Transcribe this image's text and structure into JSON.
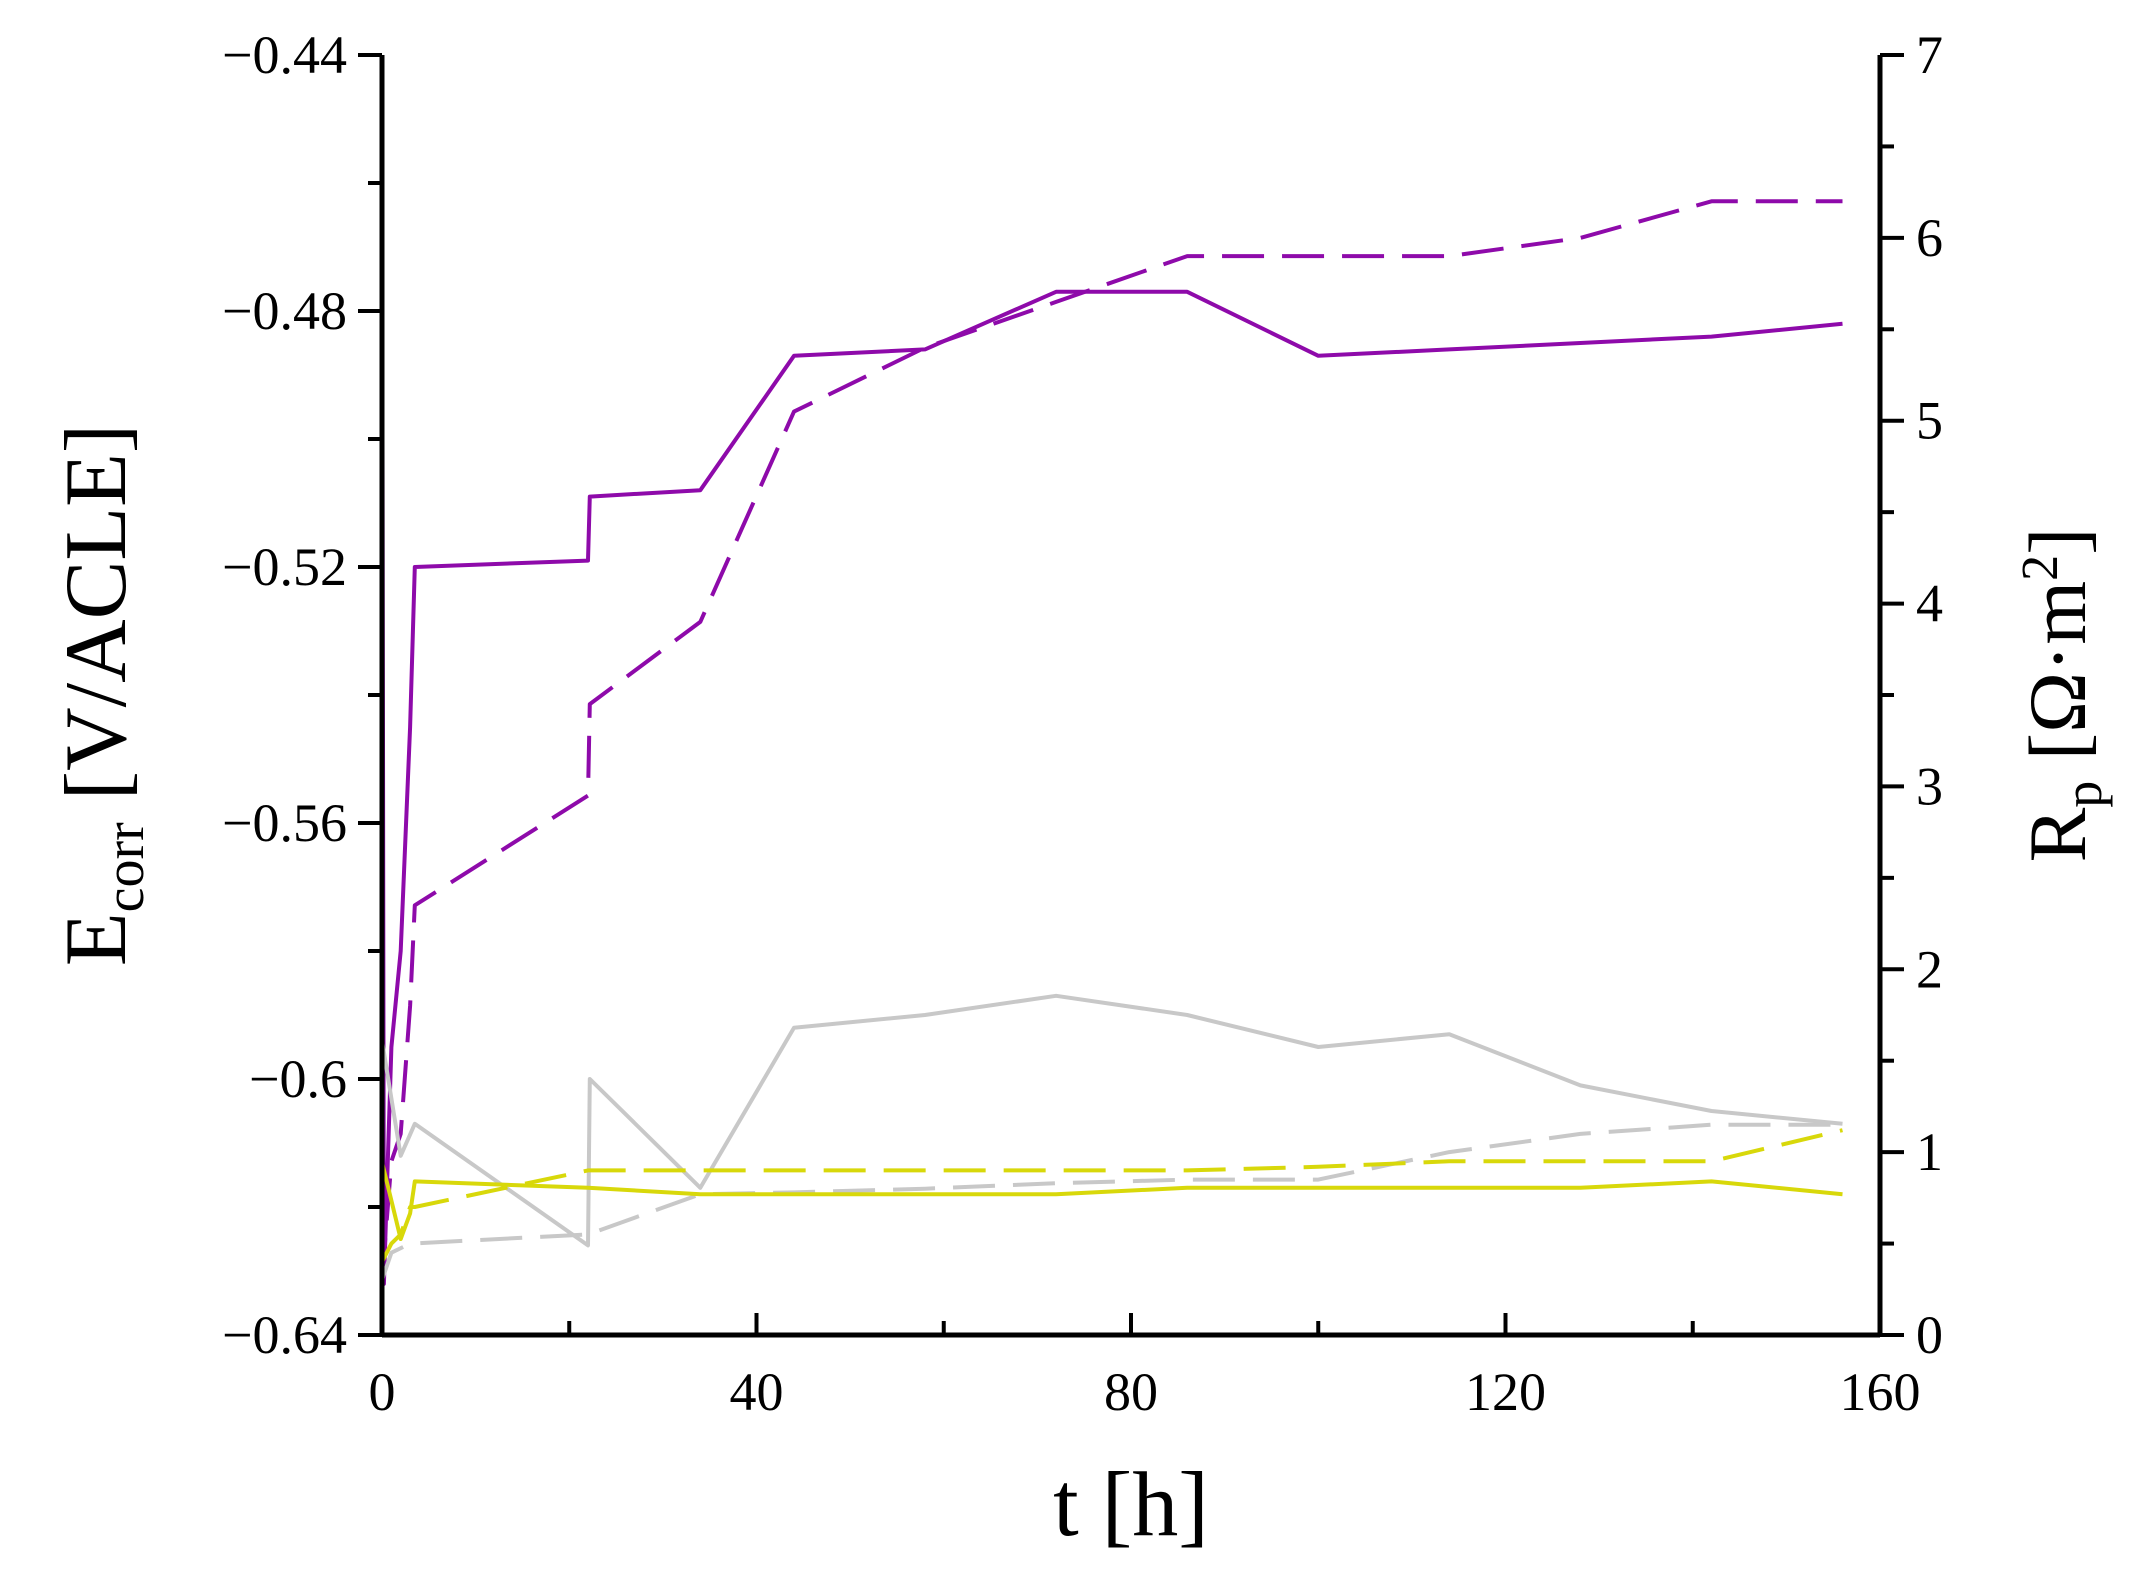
{
  "chart_data": {
    "type": "line",
    "title": "",
    "xlabel": "t [h]",
    "ylabel_left": {
      "main": "E",
      "sub": "corr",
      "rest": " [V/ACLE]"
    },
    "ylabel_right": {
      "main": "R",
      "sub": "p",
      "rest_before_sup": " [Ω·m",
      "sup": "2",
      "rest_after_sup": "]"
    },
    "x_axis": {
      "range": [
        0,
        160
      ],
      "ticks": [
        0,
        40,
        80,
        120,
        160
      ],
      "tick_labels": [
        "0",
        "40",
        "80",
        "120",
        "160"
      ]
    },
    "y_left_axis": {
      "range": [
        -0.64,
        -0.44
      ],
      "ticks": [
        -0.64,
        -0.6,
        -0.56,
        -0.52,
        -0.48,
        -0.44
      ],
      "tick_labels": [
        "−0.64",
        "−0.6",
        "−0.56",
        "−0.52",
        "−0.48",
        "−0.44"
      ]
    },
    "y_right_axis": {
      "range": [
        0,
        7
      ],
      "ticks": [
        0,
        1,
        2,
        3,
        4,
        5,
        6,
        7
      ],
      "tick_labels": [
        "0",
        "1",
        "2",
        "3",
        "4",
        "5",
        "6",
        "7"
      ]
    },
    "colors": {
      "purple": "#8e0aaa",
      "yellow": "#d8d80a",
      "gray": "#c8c8c8",
      "left_axis_label": "#4a3a10",
      "right_axis_label": "#4a3a10",
      "axis": "#000000"
    },
    "series": [
      {
        "name": "purple-solid-Ecorr",
        "color": "purple",
        "dash": "solid",
        "axis": "left",
        "x": [
          0,
          0.2,
          1,
          2,
          3,
          3.5,
          22,
          22.2,
          34,
          44,
          58,
          72,
          86,
          100,
          114,
          128,
          142,
          156
        ],
        "y": [
          -0.453,
          -0.632,
          -0.595,
          -0.58,
          -0.545,
          -0.52,
          -0.519,
          -0.509,
          -0.508,
          -0.487,
          -0.486,
          -0.477,
          -0.477,
          -0.487,
          -0.486,
          -0.485,
          -0.484,
          -0.482
        ]
      },
      {
        "name": "purple-dashed-Rp",
        "color": "purple",
        "dash": "dashed",
        "axis": "right",
        "x": [
          0,
          1,
          2,
          3,
          3.5,
          22,
          22.2,
          34,
          44,
          58,
          72,
          86,
          100,
          114,
          128,
          142,
          156
        ],
        "y": [
          0.3,
          0.95,
          1.1,
          1.8,
          2.35,
          2.95,
          3.45,
          3.9,
          5.05,
          5.4,
          5.65,
          5.9,
          5.9,
          5.9,
          6.0,
          6.2,
          6.2
        ]
      },
      {
        "name": "gray-solid-Ecorr",
        "color": "gray",
        "dash": "solid",
        "axis": "left",
        "x": [
          0,
          2,
          3.5,
          22,
          22.2,
          34,
          44,
          58,
          72,
          86,
          100,
          114,
          128,
          142,
          156
        ],
        "y": [
          -0.594,
          -0.612,
          -0.607,
          -0.626,
          -0.6,
          -0.617,
          -0.592,
          -0.59,
          -0.587,
          -0.59,
          -0.595,
          -0.593,
          -0.601,
          -0.605,
          -0.607
        ]
      },
      {
        "name": "gray-dashed-Rp",
        "color": "gray",
        "dash": "dashed",
        "axis": "right",
        "x": [
          0,
          1,
          3,
          22,
          34,
          44,
          58,
          72,
          86,
          100,
          114,
          128,
          142,
          156
        ],
        "y": [
          0.3,
          0.45,
          0.5,
          0.55,
          0.77,
          0.78,
          0.8,
          0.83,
          0.85,
          0.85,
          1.0,
          1.1,
          1.15,
          1.15
        ]
      },
      {
        "name": "yellow-solid-Ecorr",
        "color": "yellow",
        "dash": "solid",
        "axis": "left",
        "x": [
          0,
          1,
          2,
          3,
          3.5,
          22,
          34,
          44,
          58,
          72,
          86,
          100,
          114,
          128,
          142,
          156
        ],
        "y": [
          -0.613,
          -0.619,
          -0.625,
          -0.621,
          -0.616,
          -0.617,
          -0.618,
          -0.618,
          -0.618,
          -0.618,
          -0.617,
          -0.617,
          -0.617,
          -0.617,
          -0.616,
          -0.618
        ]
      },
      {
        "name": "yellow-dashed-Rp",
        "color": "yellow",
        "dash": "dashed",
        "axis": "right",
        "x": [
          0,
          1,
          2,
          3,
          3.5,
          22,
          34,
          44,
          58,
          72,
          86,
          100,
          114,
          128,
          142,
          156
        ],
        "y": [
          0.4,
          0.5,
          0.55,
          0.7,
          0.7,
          0.9,
          0.9,
          0.9,
          0.9,
          0.9,
          0.9,
          0.92,
          0.95,
          0.95,
          0.95,
          1.12
        ]
      }
    ]
  }
}
